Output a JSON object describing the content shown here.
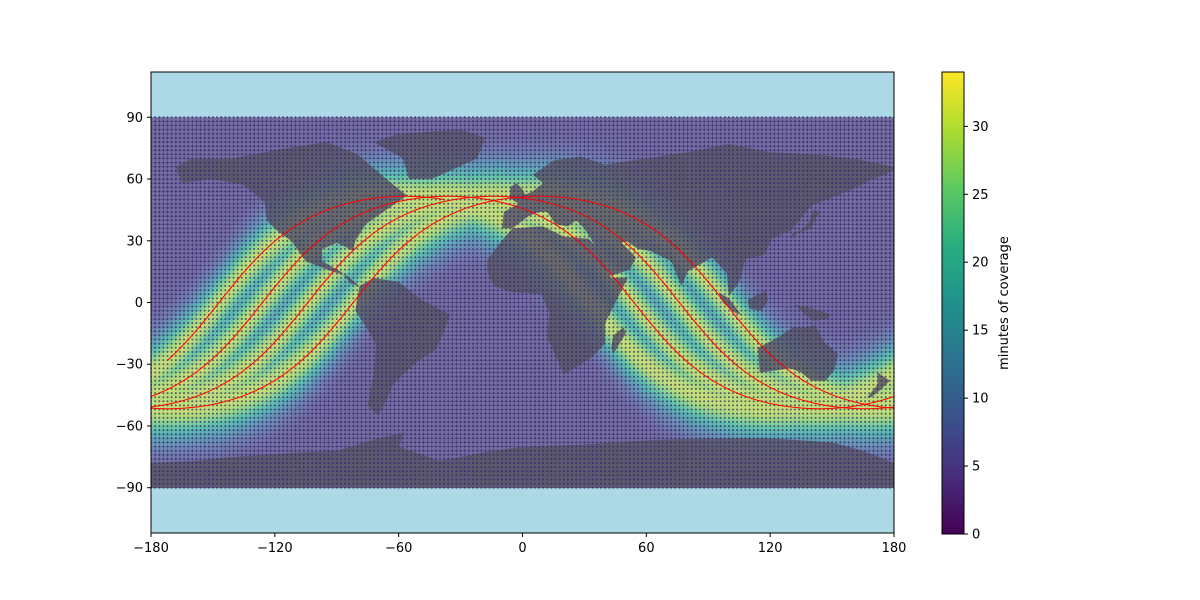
{
  "chart_data": {
    "type": "heatmap",
    "title": "",
    "xlabel": "",
    "ylabel": "",
    "xlim": [
      -180,
      180
    ],
    "ylim": [
      -112,
      112
    ],
    "xticks": [
      "−180",
      "−120",
      "−60",
      "0",
      "60",
      "120",
      "180"
    ],
    "yticks": [
      "90",
      "60",
      "30",
      "0",
      "−30",
      "−60",
      "−90"
    ],
    "colorbar": {
      "label": "minutes of coverage",
      "range": [
        0,
        34
      ],
      "ticks": [
        "0",
        "5",
        "10",
        "15",
        "20",
        "25",
        "30"
      ],
      "colormap": "viridis"
    },
    "grid_resolution_deg": 2,
    "coverage_model": {
      "peak_minutes": 32,
      "band_halfwidth_deg": 15,
      "background_minutes": 2
    },
    "ground_track": {
      "color": "#ff0000",
      "inclination_deg": 51.6,
      "passes": [
        {
          "start_lon": -172,
          "end_lon": -38
        },
        {
          "start_lon": -180,
          "end_lon": 180
        },
        {
          "start_lon": -180,
          "end_lon": 180
        },
        {
          "start_lon": -180,
          "end_lon": 180
        }
      ],
      "ascending_node_lons": [
        -147,
        -126,
        -104,
        -82
      ]
    },
    "colors": {
      "ocean": "#add8e6",
      "land": "#5b5566",
      "track": "#ff0000"
    }
  }
}
